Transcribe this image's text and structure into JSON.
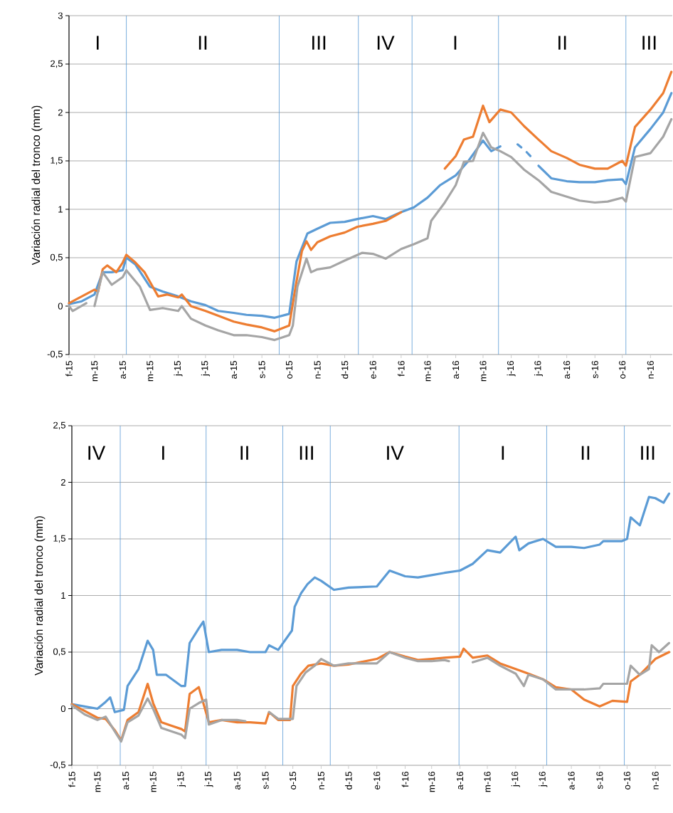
{
  "chart_data": [
    {
      "type": "line",
      "ylabel": "Variación radial del tronco (mm)",
      "grid": "y",
      "xlim": [
        "2015-02-01",
        "2016-11-25"
      ],
      "xticks": [
        {
          "value": "2015-02-01",
          "label": "f-15"
        },
        {
          "value": "2015-03-01",
          "label": "m-15"
        },
        {
          "value": "2015-04-01",
          "label": "a-15"
        },
        {
          "value": "2015-05-01",
          "label": "m-15"
        },
        {
          "value": "2015-06-01",
          "label": "j-15"
        },
        {
          "value": "2015-07-01",
          "label": "j-15"
        },
        {
          "value": "2015-08-01",
          "label": "a-15"
        },
        {
          "value": "2015-09-01",
          "label": "s-15"
        },
        {
          "value": "2015-10-01",
          "label": "o-15"
        },
        {
          "value": "2015-11-01",
          "label": "n-15"
        },
        {
          "value": "2015-12-01",
          "label": "d-15"
        },
        {
          "value": "2016-01-01",
          "label": "e-16"
        },
        {
          "value": "2016-02-01",
          "label": "f-16"
        },
        {
          "value": "2016-03-01",
          "label": "m-16"
        },
        {
          "value": "2016-04-01",
          "label": "a-16"
        },
        {
          "value": "2016-05-01",
          "label": "m-16"
        },
        {
          "value": "2016-06-01",
          "label": "j-16"
        },
        {
          "value": "2016-07-01",
          "label": "j-16"
        },
        {
          "value": "2016-08-01",
          "label": "a-16"
        },
        {
          "value": "2016-09-01",
          "label": "s-16"
        },
        {
          "value": "2016-10-01",
          "label": "o-16"
        },
        {
          "value": "2016-11-01",
          "label": "n-16"
        }
      ],
      "ylim": [
        -0.5,
        3
      ],
      "yticks": [
        {
          "value": -0.5,
          "label": "-0,5"
        },
        0,
        {
          "value": 0.5,
          "label": "0,5"
        },
        1,
        {
          "value": 1.5,
          "label": "1,5"
        },
        2,
        {
          "value": 2.5,
          "label": "2,5"
        },
        3
      ],
      "ref_lines": [
        {
          "axis": "x",
          "value": "2015-04-05",
          "color": "#5b9bd5"
        },
        {
          "axis": "x",
          "value": "2015-09-20",
          "color": "#5b9bd5"
        },
        {
          "axis": "x",
          "value": "2015-12-16",
          "color": "#5b9bd5"
        },
        {
          "axis": "x",
          "value": "2016-02-13",
          "color": "#5b9bd5"
        },
        {
          "axis": "x",
          "value": "2016-05-18",
          "color": "#5b9bd5"
        },
        {
          "axis": "x",
          "value": "2016-10-05",
          "color": "#5b9bd5"
        }
      ],
      "annotations": [
        "I",
        "II",
        "III",
        "IV",
        "I",
        "II",
        "III"
      ],
      "series": [
        {
          "color": "#5b9bd5",
          "x": [
            "2015-02-01",
            "2015-02-15",
            "2015-03-01",
            "2015-03-10",
            "2015-03-20",
            "2015-04-01",
            "2015-04-05",
            "2015-04-15",
            "2015-05-01",
            "2015-05-15",
            "2015-06-01",
            "2015-06-15",
            "2015-07-01",
            "2015-07-15",
            "2015-08-01",
            "2015-08-15",
            "2015-09-01",
            "2015-09-15",
            "2015-10-01",
            "2015-10-09",
            "2015-10-21",
            "2015-11-01",
            "2015-11-15",
            "2015-12-01",
            "2015-12-15",
            "2016-01-01",
            "2016-01-15",
            "2016-02-01",
            "2016-02-15",
            "2016-03-01",
            "2016-03-15",
            "2016-04-01",
            "2016-04-15",
            "2016-05-01",
            "2016-05-10",
            "2016-05-20",
            "2016-05-25",
            "2016-06-08",
            "2016-06-12",
            "2016-06-15",
            "2016-06-18",
            "2016-06-22",
            "2016-06-25",
            "2016-07-01",
            "2016-07-15",
            "2016-08-01",
            "2016-08-15",
            "2016-09-01",
            "2016-09-15",
            "2016-10-01",
            "2016-10-05",
            "2016-10-15",
            "2016-11-01",
            "2016-11-15",
            "2016-11-24"
          ],
          "values": [
            0.02,
            0.05,
            0.12,
            0.35,
            0.35,
            0.37,
            0.5,
            0.43,
            0.2,
            0.15,
            0.1,
            0.05,
            0.01,
            -0.05,
            -0.07,
            -0.09,
            -0.1,
            -0.12,
            -0.08,
            0.46,
            0.75,
            0.8,
            0.86,
            0.87,
            0.9,
            0.93,
            0.9,
            0.97,
            1.02,
            1.12,
            1.25,
            1.35,
            1.5,
            1.71,
            1.6,
            1.65,
            null,
            1.67,
            1.64,
            null,
            1.59,
            1.55,
            null,
            1.45,
            1.32,
            1.29,
            1.28,
            1.28,
            1.3,
            1.31,
            1.26,
            1.64,
            1.83,
            2.0,
            2.2
          ]
        },
        {
          "color": "#ed7d31",
          "x": [
            "2015-02-01",
            "2015-02-15",
            "2015-03-01",
            "2015-03-05",
            "2015-03-10",
            "2015-03-15",
            "2015-03-25",
            "2015-04-01",
            "2015-04-05",
            "2015-04-15",
            "2015-04-25",
            "2015-05-01",
            "2015-05-10",
            "2015-05-20",
            "2015-06-01",
            "2015-06-05",
            "2015-06-15",
            "2015-07-01",
            "2015-07-15",
            "2015-08-01",
            "2015-08-15",
            "2015-09-01",
            "2015-09-15",
            "2015-10-01",
            "2015-10-08",
            "2015-10-15",
            "2015-10-20",
            "2015-10-25",
            "2015-11-01",
            "2015-11-15",
            "2015-12-01",
            "2015-12-15",
            "2016-01-01",
            "2016-01-15",
            "2016-02-01",
            "2016-02-15",
            "2016-03-20",
            "2016-04-01",
            "2016-04-10",
            "2016-04-20",
            "2016-05-01",
            "2016-05-08",
            "2016-05-20",
            "2016-06-01",
            "2016-06-15",
            "2016-07-01",
            "2016-07-15",
            "2016-08-01",
            "2016-08-15",
            "2016-09-01",
            "2016-09-15",
            "2016-10-01",
            "2016-10-05",
            "2016-10-15",
            "2016-11-01",
            "2016-11-15",
            "2016-11-24"
          ],
          "values": [
            0.03,
            0.1,
            0.17,
            0.15,
            0.38,
            0.42,
            0.35,
            0.45,
            0.53,
            0.45,
            0.35,
            0.25,
            0.1,
            0.12,
            0.09,
            0.12,
            0.0,
            -0.05,
            -0.1,
            -0.16,
            -0.19,
            -0.22,
            -0.26,
            -0.2,
            0.2,
            0.57,
            0.67,
            0.58,
            0.66,
            0.72,
            0.76,
            0.82,
            0.85,
            0.88,
            0.97,
            null,
            1.42,
            1.55,
            1.72,
            1.75,
            2.07,
            1.9,
            2.03,
            2.0,
            1.86,
            1.72,
            1.6,
            1.53,
            1.46,
            1.42,
            1.42,
            1.5,
            1.45,
            1.85,
            2.03,
            2.2,
            2.42
          ]
        },
        {
          "color": "#a5a5a5",
          "x": [
            "2015-02-01",
            "2015-02-05",
            "2015-02-20",
            "2015-02-25",
            "2015-03-01",
            "2015-03-10",
            "2015-03-20",
            "2015-04-01",
            "2015-04-05",
            "2015-04-20",
            "2015-05-01",
            "2015-05-15",
            "2015-06-01",
            "2015-06-05",
            "2015-06-15",
            "2015-07-01",
            "2015-07-15",
            "2015-08-01",
            "2015-08-15",
            "2015-09-01",
            "2015-09-15",
            "2015-10-01",
            "2015-10-05",
            "2015-10-10",
            "2015-10-20",
            "2015-10-25",
            "2015-11-01",
            "2015-11-15",
            "2015-12-01",
            "2015-12-20",
            "2016-01-01",
            "2016-01-15",
            "2016-02-01",
            "2016-02-15",
            "2016-03-01",
            "2016-03-05",
            "2016-03-20",
            "2016-04-01",
            "2016-04-10",
            "2016-04-20",
            "2016-05-01",
            "2016-05-10",
            "2016-05-20",
            "2016-06-01",
            "2016-06-15",
            "2016-07-01",
            "2016-07-15",
            "2016-08-01",
            "2016-08-15",
            "2016-09-01",
            "2016-09-15",
            "2016-10-01",
            "2016-10-05",
            "2016-10-15",
            "2016-11-01",
            "2016-11-15",
            "2016-11-24"
          ],
          "values": [
            0.0,
            -0.05,
            0.03,
            null,
            0.0,
            0.35,
            0.22,
            0.3,
            0.37,
            0.2,
            -0.04,
            -0.02,
            -0.05,
            0.0,
            -0.13,
            -0.2,
            -0.25,
            -0.3,
            -0.3,
            -0.32,
            -0.35,
            -0.3,
            -0.2,
            0.2,
            0.49,
            0.35,
            0.38,
            0.4,
            0.47,
            0.55,
            0.54,
            0.49,
            0.59,
            0.64,
            0.7,
            0.88,
            1.07,
            1.25,
            1.49,
            1.5,
            1.79,
            1.64,
            1.6,
            1.54,
            1.41,
            1.3,
            1.18,
            1.13,
            1.09,
            1.07,
            1.08,
            1.12,
            1.08,
            1.54,
            1.58,
            1.75,
            1.93
          ]
        }
      ]
    },
    {
      "type": "line",
      "ylabel": "Variación radial del tronco (mm)",
      "grid": "y",
      "xlim": [
        "2015-02-01",
        "2016-11-18"
      ],
      "xticks": [
        {
          "value": "2015-02-01",
          "label": "f-15"
        },
        {
          "value": "2015-03-01",
          "label": "m-15"
        },
        {
          "value": "2015-04-01",
          "label": "a-15"
        },
        {
          "value": "2015-05-01",
          "label": "m-15"
        },
        {
          "value": "2015-06-01",
          "label": "j-15"
        },
        {
          "value": "2015-07-01",
          "label": "j-15"
        },
        {
          "value": "2015-08-01",
          "label": "a-15"
        },
        {
          "value": "2015-09-01",
          "label": "s-15"
        },
        {
          "value": "2015-10-01",
          "label": "o-15"
        },
        {
          "value": "2015-11-01",
          "label": "n-15"
        },
        {
          "value": "2015-12-01",
          "label": "d-15"
        },
        {
          "value": "2016-01-01",
          "label": "e-16"
        },
        {
          "value": "2016-02-01",
          "label": "f-16"
        },
        {
          "value": "2016-03-01",
          "label": "m-16"
        },
        {
          "value": "2016-04-01",
          "label": "a-16"
        },
        {
          "value": "2016-05-01",
          "label": "m-16"
        },
        {
          "value": "2016-06-01",
          "label": "j-16"
        },
        {
          "value": "2016-07-01",
          "label": "j-16"
        },
        {
          "value": "2016-08-01",
          "label": "a-16"
        },
        {
          "value": "2016-09-01",
          "label": "s-16"
        },
        {
          "value": "2016-10-01",
          "label": "o-16"
        },
        {
          "value": "2016-11-01",
          "label": "n-16"
        }
      ],
      "ylim": [
        -0.5,
        2.5
      ],
      "yticks": [
        {
          "value": -0.5,
          "label": "-0,5"
        },
        0,
        {
          "value": 0.5,
          "label": "0,5"
        },
        1,
        {
          "value": 1.5,
          "label": "1,5"
        },
        2,
        {
          "value": 2.5,
          "label": "2,5"
        }
      ],
      "ref_lines": [
        {
          "axis": "x",
          "value": "2015-03-26",
          "color": "#5b9bd5"
        },
        {
          "axis": "x",
          "value": "2015-06-28",
          "color": "#5b9bd5"
        },
        {
          "axis": "x",
          "value": "2015-09-20",
          "color": "#5b9bd5"
        },
        {
          "axis": "x",
          "value": "2015-11-11",
          "color": "#5b9bd5"
        },
        {
          "axis": "x",
          "value": "2016-03-31",
          "color": "#5b9bd5"
        },
        {
          "axis": "x",
          "value": "2016-07-05",
          "color": "#5b9bd5"
        },
        {
          "axis": "x",
          "value": "2016-09-28",
          "color": "#5b9bd5"
        }
      ],
      "annotations": [
        "IV",
        "I",
        "II",
        "III",
        "IV",
        "I",
        "II",
        "III"
      ],
      "series": [
        {
          "color": "#5b9bd5",
          "x": [
            "2015-02-01",
            "2015-02-15",
            "2015-03-01",
            "2015-03-10",
            "2015-03-15",
            "2015-03-20",
            "2015-03-30",
            "2015-04-03",
            "2015-04-15",
            "2015-04-25",
            "2015-05-01",
            "2015-05-05",
            "2015-05-15",
            "2015-06-01",
            "2015-06-05",
            "2015-06-10",
            "2015-06-20",
            "2015-06-25",
            "2015-07-01",
            "2015-07-15",
            "2015-08-01",
            "2015-08-15",
            "2015-09-01",
            "2015-09-05",
            "2015-09-15",
            "2015-09-30",
            "2015-10-03",
            "2015-10-10",
            "2015-10-17",
            "2015-10-25",
            "2015-11-01",
            "2015-11-15",
            "2015-12-01",
            "2016-01-01",
            "2016-01-15",
            "2016-02-01",
            "2016-02-15",
            "2016-03-01",
            "2016-03-15",
            "2016-04-01",
            "2016-04-15",
            "2016-05-01",
            "2016-05-15",
            "2016-06-01",
            "2016-06-05",
            "2016-06-15",
            "2016-07-01",
            "2016-07-15",
            "2016-08-01",
            "2016-08-15",
            "2016-09-01",
            "2016-09-05",
            "2016-09-25",
            "2016-10-01",
            "2016-10-05",
            "2016-10-15",
            "2016-10-25",
            "2016-11-01",
            "2016-11-10",
            "2016-11-16"
          ],
          "values": [
            0.04,
            0.02,
            0.0,
            0.06,
            0.1,
            -0.03,
            -0.01,
            0.2,
            0.35,
            0.6,
            0.52,
            0.3,
            0.3,
            0.2,
            0.2,
            0.58,
            0.71,
            0.77,
            0.5,
            0.52,
            0.52,
            0.5,
            0.5,
            0.56,
            0.52,
            0.69,
            0.9,
            1.02,
            1.1,
            1.16,
            1.13,
            1.05,
            1.07,
            1.08,
            1.22,
            1.17,
            1.16,
            1.18,
            1.2,
            1.22,
            1.28,
            1.4,
            1.38,
            1.52,
            1.4,
            1.46,
            1.5,
            1.43,
            1.43,
            1.42,
            1.45,
            1.48,
            1.48,
            1.5,
            1.69,
            1.62,
            1.87,
            1.86,
            1.82,
            1.9
          ]
        },
        {
          "color": "#ed7d31",
          "x": [
            "2015-02-01",
            "2015-02-15",
            "2015-03-01",
            "2015-03-10",
            "2015-03-20",
            "2015-03-27",
            "2015-04-03",
            "2015-04-15",
            "2015-04-25",
            "2015-05-01",
            "2015-05-10",
            "2015-06-01",
            "2015-06-05",
            "2015-06-10",
            "2015-06-20",
            "2015-07-01",
            "2015-07-15",
            "2015-08-01",
            "2015-08-15",
            "2015-09-01",
            "2015-09-05",
            "2015-09-15",
            "2015-09-28",
            "2015-10-01",
            "2015-10-10",
            "2015-10-18",
            "2015-11-01",
            "2015-11-15",
            "2015-12-01",
            "2016-01-01",
            "2016-01-15",
            "2016-02-01",
            "2016-02-15",
            "2016-03-01",
            "2016-03-15",
            "2016-04-01",
            "2016-04-05",
            "2016-04-15",
            "2016-05-01",
            "2016-05-15",
            "2016-06-01",
            "2016-06-15",
            "2016-07-01",
            "2016-07-15",
            "2016-08-01",
            "2016-08-15",
            "2016-09-01",
            "2016-09-15",
            "2016-10-01",
            "2016-10-05",
            "2016-10-15",
            "2016-11-01",
            "2016-11-16"
          ],
          "values": [
            0.04,
            -0.02,
            -0.08,
            -0.09,
            -0.19,
            -0.28,
            -0.1,
            -0.03,
            0.22,
            0.05,
            -0.12,
            -0.18,
            -0.2,
            0.13,
            0.19,
            -0.12,
            -0.1,
            -0.12,
            -0.12,
            -0.13,
            -0.03,
            -0.1,
            -0.1,
            0.2,
            0.31,
            0.38,
            0.4,
            0.38,
            0.39,
            0.44,
            0.5,
            0.46,
            0.43,
            0.44,
            0.45,
            0.46,
            0.53,
            0.45,
            0.47,
            0.4,
            0.35,
            0.31,
            0.26,
            0.19,
            0.17,
            0.08,
            0.02,
            0.07,
            0.06,
            0.24,
            0.3,
            0.44,
            0.5
          ]
        },
        {
          "color": "#a5a5a5",
          "x": [
            "2015-02-01",
            "2015-02-15",
            "2015-03-01",
            "2015-03-10",
            "2015-03-20",
            "2015-03-27",
            "2015-04-03",
            "2015-04-15",
            "2015-04-25",
            "2015-05-01",
            "2015-05-10",
            "2015-06-01",
            "2015-06-05",
            "2015-06-10",
            "2015-06-20",
            "2015-06-28",
            "2015-07-01",
            "2015-07-15",
            "2015-08-01",
            "2015-08-10",
            "2015-08-20",
            "2015-09-05",
            "2015-09-15",
            "2015-10-01",
            "2015-10-05",
            "2015-10-15",
            "2015-10-25",
            "2015-11-01",
            "2015-11-15",
            "2015-12-01",
            "2016-01-01",
            "2016-01-15",
            "2016-02-01",
            "2016-02-15",
            "2016-03-01",
            "2016-03-15",
            "2016-03-20",
            "2016-04-01",
            "2016-04-15",
            "2016-05-01",
            "2016-05-15",
            "2016-06-01",
            "2016-06-10",
            "2016-06-15",
            "2016-07-01",
            "2016-07-15",
            "2016-08-01",
            "2016-08-15",
            "2016-09-01",
            "2016-09-05",
            "2016-10-01",
            "2016-10-05",
            "2016-10-15",
            "2016-10-25",
            "2016-10-28",
            "2016-11-05",
            "2016-11-16"
          ],
          "values": [
            0.03,
            -0.05,
            -0.1,
            -0.07,
            -0.2,
            -0.29,
            -0.12,
            -0.06,
            0.09,
            0.0,
            -0.17,
            -0.23,
            -0.26,
            0.0,
            0.05,
            0.08,
            -0.14,
            -0.1,
            -0.1,
            -0.11,
            null,
            -0.03,
            -0.09,
            -0.09,
            0.2,
            0.32,
            0.38,
            0.44,
            0.38,
            0.4,
            0.4,
            0.5,
            0.45,
            0.42,
            0.42,
            0.43,
            0.42,
            null,
            0.41,
            0.45,
            0.38,
            0.31,
            0.2,
            0.3,
            0.26,
            0.17,
            0.17,
            0.17,
            0.18,
            0.22,
            0.22,
            0.38,
            0.3,
            0.35,
            0.56,
            0.5,
            0.58
          ]
        }
      ]
    }
  ]
}
